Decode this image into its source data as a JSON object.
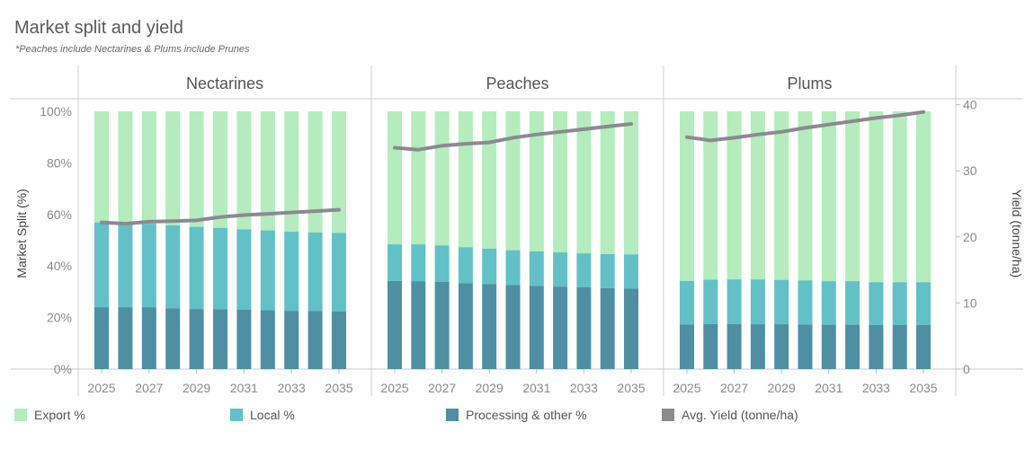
{
  "title": "Market split and yield",
  "subtitle": "*Peaches include Nectarines & Plums include Prunes",
  "legend": [
    {
      "label": "Export %",
      "color": "#b4ecbe"
    },
    {
      "label": "Local %",
      "color": "#62c1c7"
    },
    {
      "label": "Processing & other %",
      "color": "#4f8fa3"
    },
    {
      "label": "Avg. Yield (tonne/ha)",
      "color": "#8a8a90"
    }
  ],
  "chart_data": {
    "type": "bar",
    "stacked": true,
    "y_left_label": "Market Split (%)",
    "y_left_ticks": [
      "0%",
      "20%",
      "40%",
      "60%",
      "80%",
      "100%"
    ],
    "y_right_label": "Yield (tonne/ha)",
    "y_right_ticks": [
      "0",
      "10",
      "20",
      "30",
      "40"
    ],
    "y_right_range": [
      0,
      39
    ],
    "x_tick_labels": [
      "2025",
      "2027",
      "2029",
      "2031",
      "2033",
      "2035"
    ],
    "categories": [
      2025,
      2026,
      2027,
      2028,
      2029,
      2030,
      2031,
      2032,
      2033,
      2034,
      2035
    ],
    "panels": [
      {
        "name": "Nectarines",
        "processing": [
          24,
          24,
          24,
          23.6,
          23.3,
          23.2,
          23,
          22.8,
          22.6,
          22.5,
          22.3
        ],
        "local": [
          32.9,
          32.6,
          32.4,
          32.2,
          31.9,
          31.6,
          31.2,
          31,
          30.7,
          30.5,
          30.5
        ],
        "export": [
          43.1,
          43.4,
          43.6,
          44.2,
          44.8,
          45.2,
          45.8,
          46.2,
          46.7,
          47,
          47.2
        ],
        "yield": [
          22.2,
          22,
          22.3,
          22.4,
          22.5,
          23,
          23.3,
          23.5,
          23.7,
          23.9,
          24.1
        ]
      },
      {
        "name": "Peaches",
        "processing": [
          34.2,
          34.1,
          33.8,
          33.3,
          33,
          32.6,
          32.3,
          32,
          31.7,
          31.4,
          31.2
        ],
        "local": [
          14.2,
          14.3,
          14.2,
          14,
          13.7,
          13.5,
          13.4,
          13.3,
          13.2,
          13.2,
          13.3
        ],
        "export": [
          51.6,
          51.6,
          52,
          52.7,
          53.3,
          53.9,
          54.3,
          54.7,
          55.1,
          55.4,
          55.5
        ],
        "yield": [
          33.5,
          33.2,
          33.8,
          34.1,
          34.3,
          35,
          35.5,
          35.9,
          36.3,
          36.7,
          37.1
        ]
      },
      {
        "name": "Plums",
        "processing": [
          17.3,
          17.5,
          17.5,
          17.4,
          17.4,
          17.3,
          17.2,
          17.2,
          17.1,
          17.1,
          17.1
        ],
        "local": [
          16.9,
          17.2,
          17.3,
          17.4,
          17.2,
          17.1,
          16.9,
          16.9,
          16.6,
          16.6,
          16.6
        ],
        "export": [
          65.8,
          65.3,
          65.2,
          65.2,
          65.4,
          65.6,
          65.9,
          65.9,
          66.3,
          66.3,
          66.3
        ],
        "yield": [
          35.1,
          34.6,
          35,
          35.5,
          35.9,
          36.5,
          37,
          37.5,
          38,
          38.4,
          38.9
        ]
      }
    ],
    "colors": {
      "export": "#b4ecbe",
      "local": "#62c1c7",
      "processing": "#4f8fa3",
      "yield": "#8a8a90",
      "grid": "#d9d9d9",
      "axis_text": "#8a8a8a"
    },
    "grid": true,
    "legend_position": "bottom"
  }
}
